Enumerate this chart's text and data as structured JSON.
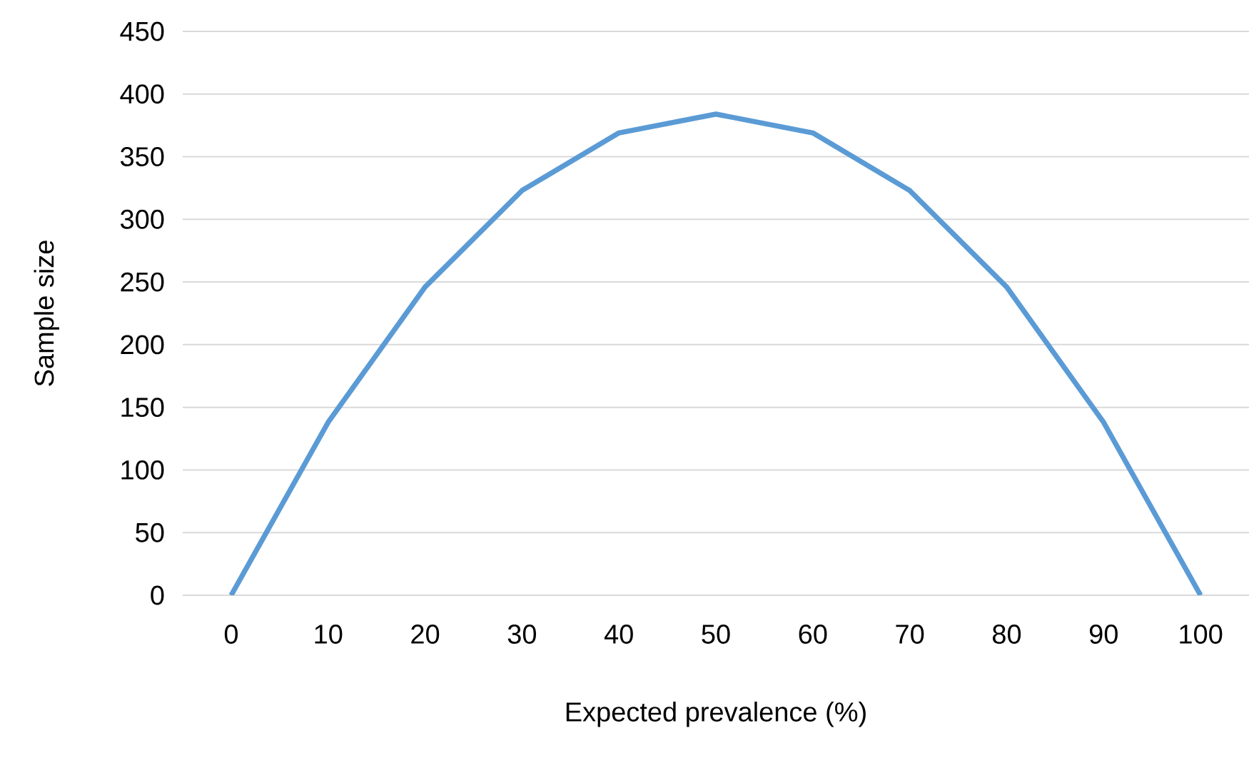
{
  "chart_data": {
    "type": "line",
    "xlabel": "Expected prevalence (%)",
    "ylabel": "Sample size",
    "categories": [
      "0",
      "10",
      "20",
      "30",
      "40",
      "50",
      "60",
      "70",
      "80",
      "90",
      "100"
    ],
    "series": [
      {
        "color": "#5b9bd5",
        "values": [
          0,
          138,
          246,
          323,
          369,
          384,
          369,
          323,
          246,
          138,
          0
        ]
      }
    ],
    "ylim": [
      0,
      450
    ],
    "yticks": [
      0,
      50,
      100,
      150,
      200,
      250,
      300,
      350,
      400,
      450
    ],
    "grid": "y",
    "marker": "none"
  }
}
